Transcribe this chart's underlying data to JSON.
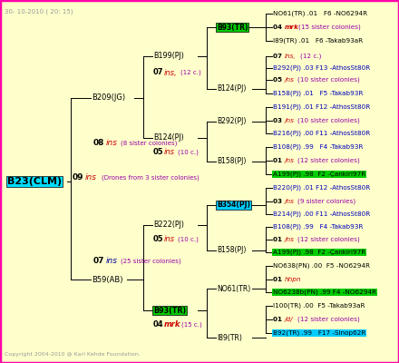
{
  "bg_color": "#ffffcc",
  "border_color": "#ff00aa",
  "timestamp": "30- 10-2010 ( 20: 15)",
  "copyright": "Copyright 2004-2010 @ Karl Kehde Foundation.",
  "title_node": "B23(CLM)",
  "title_bg": "#00ddff",
  "title_fg": "#000000"
}
